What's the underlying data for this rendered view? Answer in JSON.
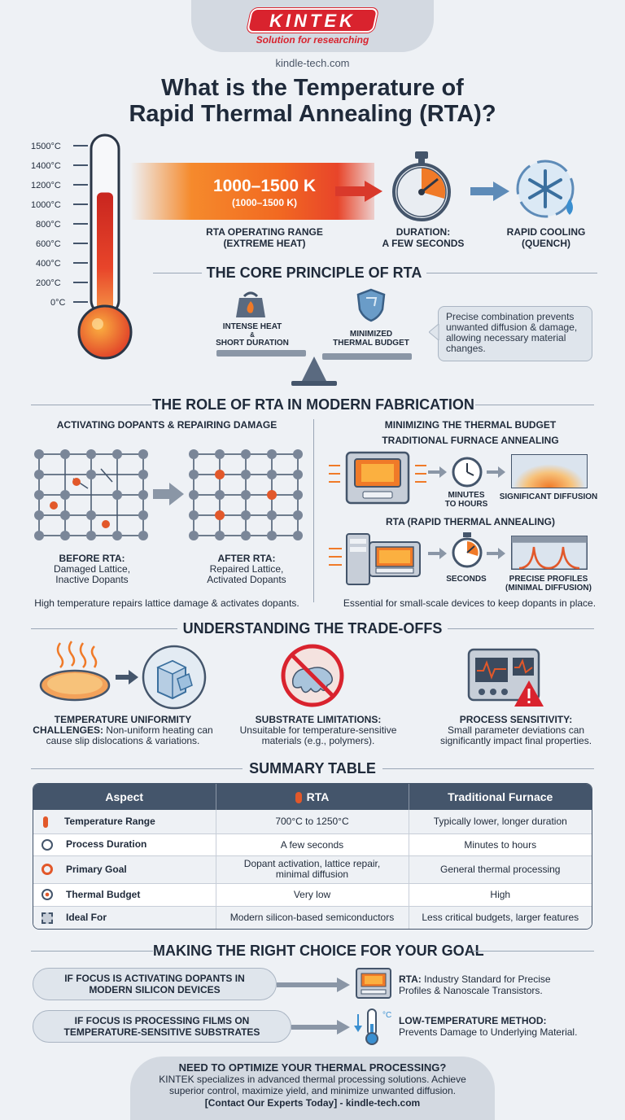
{
  "header": {
    "logo_text": "KINTEK",
    "tagline": "Solution for researching",
    "site": "kindle-tech.com",
    "title_line1": "What is the Temperature of",
    "title_line2": "Rapid Thermal Annealing (RTA)?"
  },
  "thermometer": {
    "ticks": [
      "1500°C",
      "1400°C",
      "1200°C",
      "1000°C",
      "800°C",
      "600°C",
      "400°C",
      "200°C",
      "0°C"
    ],
    "fill_fraction": 0.72
  },
  "hero": {
    "range_main": "1000–1500 K",
    "range_sub": "(1000–1500 K)",
    "range_label_1": "RTA OPERATING RANGE",
    "range_label_2": "(EXTREME HEAT)",
    "duration_label_1": "DURATION:",
    "duration_label_2": "A FEW SECONDS",
    "cooling_label_1": "RAPID COOLING",
    "cooling_label_2": "(QUENCH)"
  },
  "core": {
    "title": "THE CORE PRINCIPLE OF RTA",
    "left_1": "INTENSE HEAT",
    "left_amp": "&",
    "left_2": "SHORT DURATION",
    "right_1": "MINIMIZED",
    "right_2": "THERMAL BUDGET",
    "note": "Precise combination prevents unwanted diffusion & damage, allowing necessary material changes."
  },
  "role": {
    "title": "THE ROLE OF RTA IN MODERN FABRICATION",
    "left_title": "ACTIVATING DOPANTS & REPAIRING DAMAGE",
    "before_title": "BEFORE RTA:",
    "before_1": "Damaged Lattice,",
    "before_2": "Inactive Dopants",
    "after_title": "AFTER RTA:",
    "after_1": "Repaired Lattice,",
    "after_2": "Activated Dopants",
    "left_caption": "High temperature repairs lattice damage & activates dopants.",
    "right_title_1": "MINIMIZING THE THERMAL BUDGET",
    "right_title_2": "TRADITIONAL FURNACE ANNEALING",
    "minutes_1": "MINUTES",
    "minutes_2": "TO HOURS",
    "significant": "SIGNIFICANT DIFFUSION",
    "rta_title": "RTA (RAPID THERMAL ANNEALING)",
    "seconds": "SECONDS",
    "precise_1": "PRECISE PROFILES",
    "precise_2": "(MINIMAL DIFFUSION)",
    "right_caption": "Essential for small-scale devices to keep dopants in place."
  },
  "tradeoffs": {
    "title": "UNDERSTANDING THE TRADE-OFFS",
    "items": [
      {
        "title": "TEMPERATURE UNIFORMITY",
        "title2": "CHALLENGES:",
        "text": "Non-uniform heating can cause slip dislocations & variations."
      },
      {
        "title": "SUBSTRATE LIMITATIONS:",
        "title2": "",
        "text": "Unsuitable for temperature-sensitive materials (e.g., polymers)."
      },
      {
        "title": "PROCESS SENSITIVITY:",
        "title2": "",
        "text": "Small parameter deviations can significantly impact final properties."
      }
    ]
  },
  "summary": {
    "title": "SUMMARY TABLE",
    "headers": [
      "Aspect",
      "RTA",
      "Traditional Furnace"
    ],
    "rows": [
      {
        "aspect": "Temperature Range",
        "rta": "700°C to 1250°C",
        "furnace": "Typically lower, longer duration"
      },
      {
        "aspect": "Process Duration",
        "rta": "A few seconds",
        "furnace": "Minutes to hours"
      },
      {
        "aspect": "Primary Goal",
        "rta": "Dopant activation, lattice repair, minimal diffusion",
        "furnace": "General thermal processing"
      },
      {
        "aspect": "Thermal Budget",
        "rta": "Very low",
        "furnace": "High"
      },
      {
        "aspect": "Ideal For",
        "rta": "Modern silicon-based semiconductors",
        "furnace": "Less critical budgets, larger features"
      }
    ]
  },
  "choice": {
    "title": "MAKING THE RIGHT CHOICE FOR YOUR GOAL",
    "option1_1": "IF FOCUS IS ACTIVATING DOPANTS IN",
    "option1_2": "MODERN SILICON DEVICES",
    "result1_bold": "RTA:",
    "result1_1": "Industry Standard for Precise",
    "result1_2": "Profiles & Nanoscale Transistors.",
    "option2_1": "IF FOCUS IS PROCESSING FILMS ON",
    "option2_2": "TEMPERATURE-SENSITIVE SUBSTRATES",
    "result2_bold": "LOW-TEMPERATURE METHOD:",
    "result2_1": "Prevents Damage to Underlying Material.",
    "unit": "°C"
  },
  "footer": {
    "title": "NEED TO OPTIMIZE YOUR THERMAL PROCESSING?",
    "text_1": "KINTEK specializes in advanced thermal processing solutions. Achieve",
    "text_2": "superior control, maximize yield, and minimize unwanted diffusion.",
    "cta": "[Contact Our Experts Today] - kindle-tech.com"
  },
  "colors": {
    "accent": "#d9232e",
    "navy": "#44556b",
    "orange": "#f07a28"
  }
}
